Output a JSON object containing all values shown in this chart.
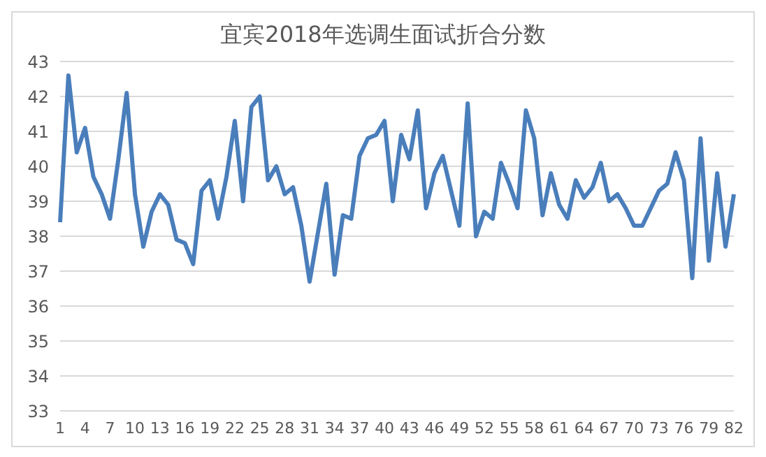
{
  "chart_data": {
    "type": "line",
    "title": "宜宾2018年选调生面试折合分数",
    "categories": [
      "1",
      null,
      null,
      "4",
      null,
      null,
      "7",
      null,
      null,
      "10",
      null,
      null,
      "13",
      null,
      null,
      "16",
      null,
      null,
      "19",
      null,
      null,
      "22",
      null,
      null,
      "25",
      null,
      null,
      "28",
      null,
      null,
      "31",
      null,
      null,
      "34",
      null,
      null,
      "37",
      null,
      null,
      "40",
      null,
      null,
      "43",
      null,
      null,
      "46",
      null,
      null,
      "49",
      null,
      null,
      "52",
      null,
      null,
      "55",
      null,
      null,
      "58",
      null,
      null,
      "61",
      null,
      null,
      "64",
      null,
      null,
      "67",
      null,
      null,
      "70",
      null,
      null,
      "73",
      null,
      null,
      "76",
      null,
      null,
      "79",
      null,
      null,
      "82"
    ],
    "series": [
      {
        "color": "#4a7ebb",
        "values": [
          38.4,
          42.6,
          40.4,
          41.1,
          39.7,
          39.2,
          38.5,
          40.2,
          42.1,
          39.2,
          37.7,
          38.7,
          39.2,
          38.9,
          37.9,
          37.8,
          37.2,
          39.3,
          39.6,
          38.5,
          39.7,
          41.3,
          39.0,
          41.7,
          42.0,
          39.6,
          40.0,
          39.2,
          39.4,
          38.3,
          36.7,
          38.1,
          39.5,
          36.9,
          38.6,
          38.5,
          40.3,
          40.8,
          40.9,
          41.3,
          39.0,
          40.9,
          40.2,
          41.6,
          38.8,
          39.8,
          40.3,
          39.3,
          38.3,
          41.8,
          38.0,
          38.7,
          38.5,
          40.1,
          39.5,
          38.8,
          41.6,
          40.8,
          38.6,
          39.8,
          38.9,
          38.5,
          39.6,
          39.1,
          39.4,
          40.1,
          39.0,
          39.2,
          38.8,
          38.3,
          38.3,
          38.8,
          39.3,
          39.5,
          40.4,
          39.6,
          36.8,
          40.8,
          37.3,
          39.8,
          37.7,
          39.2
        ]
      }
    ],
    "ylim": [
      33,
      43
    ],
    "yticks": [
      33,
      34,
      35,
      36,
      37,
      38,
      39,
      40,
      41,
      42,
      43
    ],
    "grid": "y",
    "legend": false,
    "marker": "none",
    "line_style": "solid"
  }
}
